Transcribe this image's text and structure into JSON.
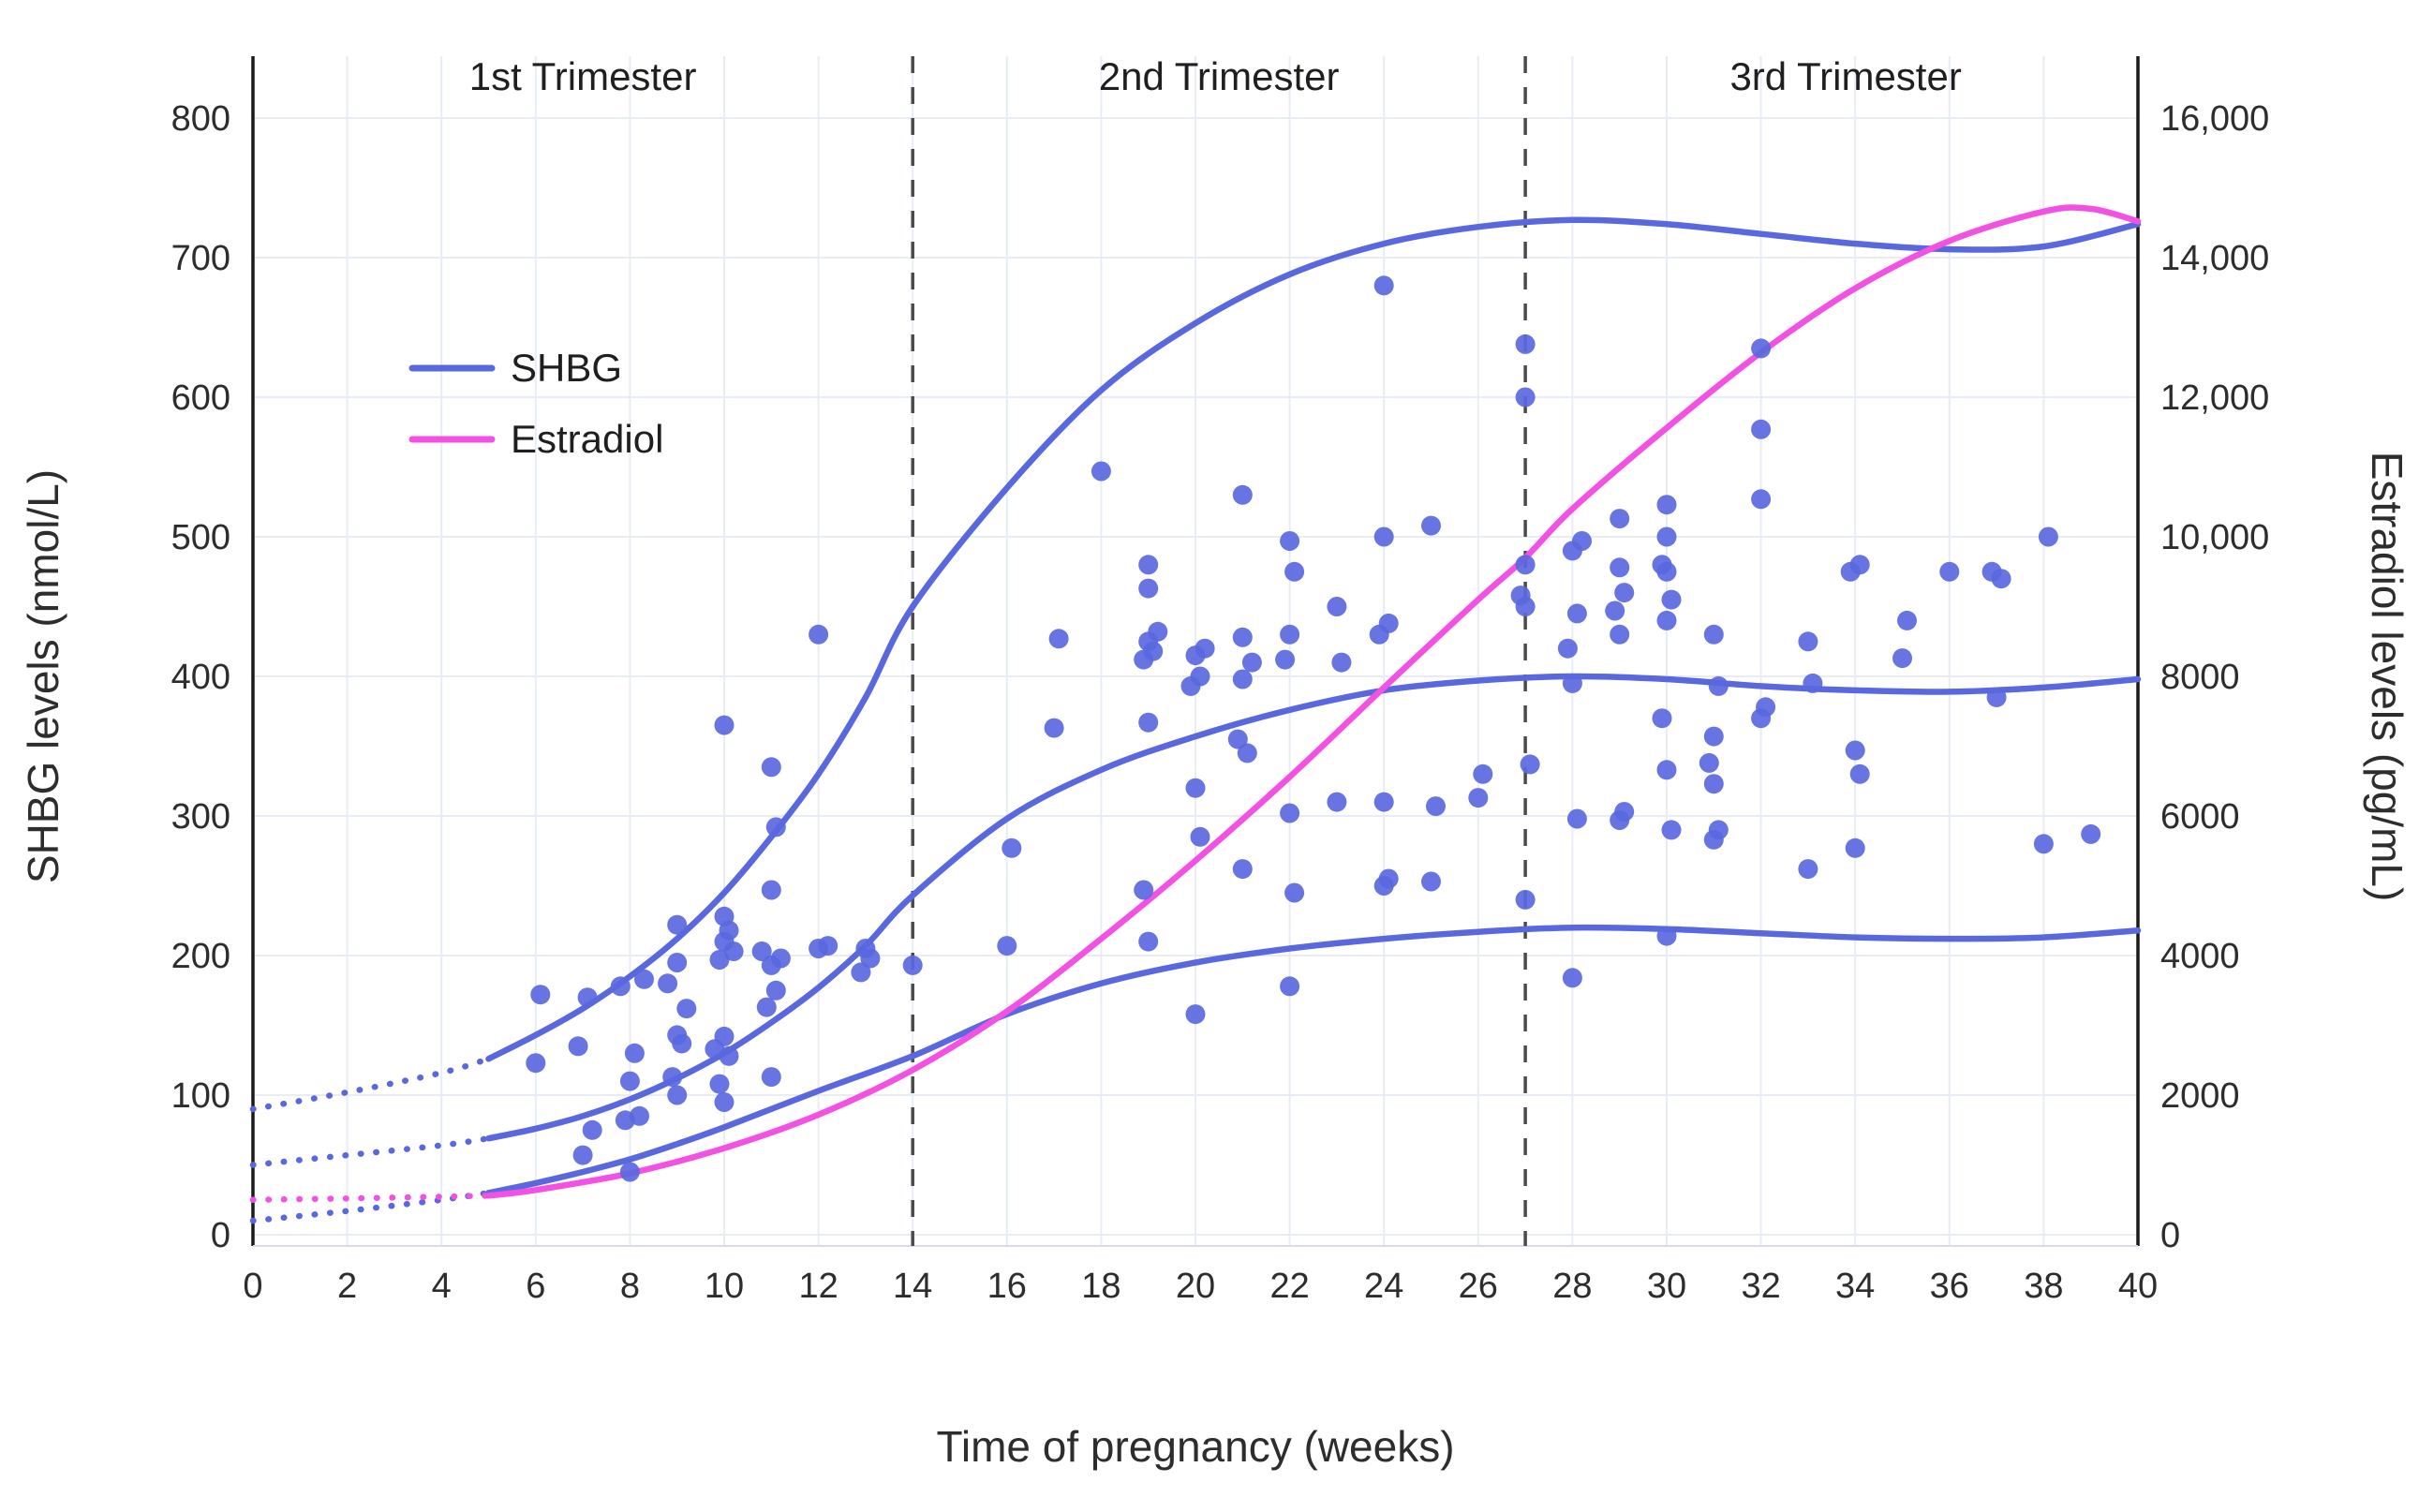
{
  "chart_data": {
    "type": "scatter",
    "title": "",
    "xlabel": "Time of pregnancy (weeks)",
    "ylabel_left": "SHBG levels (nmol/L)",
    "ylabel_right": "Estradiol levels (pg/mL)",
    "x_range": [
      0,
      40
    ],
    "y_left_range": [
      0,
      800
    ],
    "y_right_range": [
      0,
      16000
    ],
    "grid": true,
    "x_ticks": [
      0,
      2,
      4,
      6,
      8,
      10,
      12,
      14,
      16,
      18,
      20,
      22,
      24,
      26,
      28,
      30,
      32,
      34,
      36,
      38,
      40
    ],
    "y_left_ticks": [
      0,
      100,
      200,
      300,
      400,
      500,
      600,
      700,
      800
    ],
    "y_right_ticks": [
      {
        "value": 0,
        "label": "0"
      },
      {
        "value": 2000,
        "label": "2000"
      },
      {
        "value": 4000,
        "label": "4000"
      },
      {
        "value": 6000,
        "label": "6000"
      },
      {
        "value": 8000,
        "label": "8000"
      },
      {
        "value": 10000,
        "label": "10,000"
      },
      {
        "value": 12000,
        "label": "12,000"
      },
      {
        "value": 14000,
        "label": "14,000"
      },
      {
        "value": 16000,
        "label": "16,000"
      }
    ],
    "regions": {
      "dividers_weeks": [
        14,
        27
      ],
      "labels": [
        {
          "text": "1st Trimester",
          "week": 7
        },
        {
          "text": "2nd Trimester",
          "week": 20.5
        },
        {
          "text": "3rd Trimester",
          "week": 33.8
        }
      ]
    },
    "legend": {
      "position": "upper-left-inside",
      "items": [
        {
          "label": "SHBG",
          "color": "#5A68E0"
        },
        {
          "label": "Estradiol",
          "color": "#F351E3"
        }
      ]
    },
    "colors": {
      "shbg": "#5A68E0",
      "estradiol": "#F351E3",
      "divider": "#4a4a4a",
      "axis": "#1a1a1a",
      "text": "#2d2d2d",
      "grid": "#e8ecf5"
    },
    "shbg_percentile_curves": [
      {
        "name": "upper",
        "axis": "left",
        "dotted_until_week": 5,
        "points": [
          [
            0,
            90
          ],
          [
            2,
            102
          ],
          [
            4,
            116
          ],
          [
            5,
            126
          ],
          [
            6,
            143
          ],
          [
            7,
            162
          ],
          [
            8,
            185
          ],
          [
            9,
            212
          ],
          [
            10,
            245
          ],
          [
            11,
            285
          ],
          [
            12,
            330
          ],
          [
            13,
            385
          ],
          [
            14,
            450
          ],
          [
            16,
            535
          ],
          [
            18,
            605
          ],
          [
            20,
            653
          ],
          [
            22,
            688
          ],
          [
            24,
            710
          ],
          [
            26,
            722
          ],
          [
            28,
            727
          ],
          [
            30,
            724
          ],
          [
            32,
            717
          ],
          [
            34,
            710
          ],
          [
            36,
            706
          ],
          [
            38,
            708
          ],
          [
            40,
            724
          ]
        ]
      },
      {
        "name": "median",
        "axis": "left",
        "dotted_until_week": 5,
        "points": [
          [
            0,
            50
          ],
          [
            2,
            57
          ],
          [
            4,
            64
          ],
          [
            5,
            69
          ],
          [
            6,
            76
          ],
          [
            7,
            85
          ],
          [
            8,
            97
          ],
          [
            9,
            112
          ],
          [
            10,
            130
          ],
          [
            11,
            152
          ],
          [
            12,
            177
          ],
          [
            13,
            207
          ],
          [
            14,
            243
          ],
          [
            16,
            298
          ],
          [
            18,
            333
          ],
          [
            20,
            357
          ],
          [
            22,
            376
          ],
          [
            24,
            390
          ],
          [
            26,
            397
          ],
          [
            28,
            400
          ],
          [
            30,
            398
          ],
          [
            32,
            393
          ],
          [
            34,
            390
          ],
          [
            36,
            389
          ],
          [
            38,
            392
          ],
          [
            40,
            398
          ]
        ]
      },
      {
        "name": "lower",
        "axis": "left",
        "dotted_until_week": 5,
        "points": [
          [
            0,
            10
          ],
          [
            2,
            17
          ],
          [
            4,
            25
          ],
          [
            5,
            30
          ],
          [
            6,
            37
          ],
          [
            7,
            45
          ],
          [
            8,
            54
          ],
          [
            9,
            65
          ],
          [
            10,
            77
          ],
          [
            12,
            103
          ],
          [
            14,
            128
          ],
          [
            16,
            158
          ],
          [
            18,
            180
          ],
          [
            20,
            195
          ],
          [
            22,
            205
          ],
          [
            24,
            212
          ],
          [
            26,
            217
          ],
          [
            28,
            220
          ],
          [
            30,
            219
          ],
          [
            32,
            216
          ],
          [
            34,
            213
          ],
          [
            36,
            212
          ],
          [
            38,
            213
          ],
          [
            40,
            218
          ]
        ]
      }
    ],
    "estradiol_curve": {
      "axis": "right",
      "dotted_until_week": 5,
      "points_pg_ml": [
        [
          0,
          500
        ],
        [
          2,
          520
        ],
        [
          4,
          545
        ],
        [
          5,
          560
        ],
        [
          6,
          640
        ],
        [
          8,
          880
        ],
        [
          10,
          1240
        ],
        [
          12,
          1720
        ],
        [
          14,
          2360
        ],
        [
          16,
          3200
        ],
        [
          18,
          4240
        ],
        [
          20,
          5360
        ],
        [
          22,
          6560
        ],
        [
          24,
          7840
        ],
        [
          26,
          9100
        ],
        [
          27,
          9700
        ],
        [
          28,
          10400
        ],
        [
          30,
          11560
        ],
        [
          32,
          12640
        ],
        [
          34,
          13560
        ],
        [
          36,
          14240
        ],
        [
          38,
          14660
        ],
        [
          39,
          14700
        ],
        [
          40,
          14520
        ]
      ]
    },
    "shbg_scatter_points": [
      [
        6.0,
        123
      ],
      [
        6.1,
        172
      ],
      [
        7.0,
        57
      ],
      [
        7.2,
        75
      ],
      [
        6.9,
        135
      ],
      [
        7.1,
        170
      ],
      [
        8.0,
        45
      ],
      [
        7.9,
        82
      ],
      [
        8.2,
        85
      ],
      [
        8.0,
        110
      ],
      [
        8.1,
        130
      ],
      [
        7.8,
        178
      ],
      [
        8.3,
        183
      ],
      [
        9.0,
        100
      ],
      [
        8.9,
        113
      ],
      [
        9.1,
        137
      ],
      [
        9.0,
        143
      ],
      [
        9.2,
        162
      ],
      [
        8.8,
        180
      ],
      [
        9.0,
        195
      ],
      [
        9.0,
        222
      ],
      [
        10.0,
        95
      ],
      [
        9.9,
        108
      ],
      [
        10.1,
        128
      ],
      [
        9.8,
        133
      ],
      [
        10.0,
        142
      ],
      [
        9.9,
        197
      ],
      [
        10.2,
        203
      ],
      [
        10.0,
        210
      ],
      [
        10.1,
        218
      ],
      [
        10.0,
        228
      ],
      [
        10.0,
        365
      ],
      [
        11.0,
        113
      ],
      [
        10.9,
        163
      ],
      [
        11.1,
        175
      ],
      [
        11.0,
        193
      ],
      [
        11.2,
        198
      ],
      [
        10.8,
        203
      ],
      [
        11.0,
        247
      ],
      [
        11.1,
        292
      ],
      [
        11.0,
        335
      ],
      [
        12.0,
        205
      ],
      [
        12.2,
        207
      ],
      [
        12.0,
        430
      ],
      [
        12.9,
        188
      ],
      [
        13.1,
        198
      ],
      [
        13.0,
        205
      ],
      [
        14.0,
        193
      ],
      [
        16.0,
        207
      ],
      [
        16.1,
        277
      ],
      [
        17.0,
        363
      ],
      [
        17.1,
        427
      ],
      [
        18.0,
        547
      ],
      [
        19.0,
        210
      ],
      [
        18.9,
        247
      ],
      [
        19.0,
        367
      ],
      [
        18.9,
        412
      ],
      [
        19.1,
        418
      ],
      [
        19.0,
        425
      ],
      [
        19.2,
        432
      ],
      [
        19.0,
        463
      ],
      [
        19.0,
        480
      ],
      [
        20.0,
        158
      ],
      [
        20.1,
        285
      ],
      [
        20.0,
        320
      ],
      [
        19.9,
        393
      ],
      [
        20.1,
        400
      ],
      [
        20.0,
        415
      ],
      [
        20.2,
        420
      ],
      [
        21.0,
        262
      ],
      [
        21.1,
        345
      ],
      [
        20.9,
        355
      ],
      [
        21.0,
        398
      ],
      [
        21.2,
        410
      ],
      [
        21.0,
        428
      ],
      [
        21.0,
        530
      ],
      [
        22.0,
        178
      ],
      [
        22.1,
        245
      ],
      [
        22.0,
        302
      ],
      [
        21.9,
        412
      ],
      [
        22.0,
        430
      ],
      [
        22.1,
        475
      ],
      [
        22.0,
        497
      ],
      [
        23.0,
        310
      ],
      [
        23.1,
        410
      ],
      [
        23.0,
        450
      ],
      [
        24.0,
        250
      ],
      [
        24.1,
        255
      ],
      [
        24.0,
        310
      ],
      [
        23.9,
        430
      ],
      [
        24.1,
        438
      ],
      [
        24.0,
        500
      ],
      [
        24.0,
        680
      ],
      [
        25.0,
        253
      ],
      [
        25.1,
        307
      ],
      [
        25.0,
        508
      ],
      [
        26.0,
        313
      ],
      [
        26.1,
        330
      ],
      [
        27.0,
        240
      ],
      [
        27.1,
        337
      ],
      [
        27.0,
        450
      ],
      [
        26.9,
        458
      ],
      [
        27.0,
        480
      ],
      [
        27.0,
        600
      ],
      [
        27.0,
        638
      ],
      [
        28.0,
        184
      ],
      [
        28.1,
        298
      ],
      [
        28.0,
        395
      ],
      [
        27.9,
        420
      ],
      [
        28.1,
        445
      ],
      [
        28.0,
        490
      ],
      [
        28.2,
        497
      ],
      [
        29.0,
        297
      ],
      [
        29.1,
        303
      ],
      [
        29.0,
        430
      ],
      [
        28.9,
        447
      ],
      [
        29.1,
        460
      ],
      [
        29.0,
        478
      ],
      [
        29.0,
        513
      ],
      [
        30.0,
        214
      ],
      [
        30.1,
        290
      ],
      [
        30.0,
        333
      ],
      [
        29.9,
        370
      ],
      [
        30.0,
        440
      ],
      [
        30.1,
        455
      ],
      [
        30.0,
        475
      ],
      [
        29.9,
        480
      ],
      [
        30.0,
        500
      ],
      [
        30.0,
        523
      ],
      [
        31.0,
        283
      ],
      [
        31.1,
        290
      ],
      [
        31.0,
        323
      ],
      [
        30.9,
        338
      ],
      [
        31.0,
        357
      ],
      [
        31.1,
        393
      ],
      [
        31.0,
        430
      ],
      [
        32.0,
        370
      ],
      [
        32.1,
        378
      ],
      [
        32.0,
        527
      ],
      [
        32.0,
        577
      ],
      [
        32.0,
        635
      ],
      [
        33.0,
        262
      ],
      [
        33.1,
        395
      ],
      [
        33.0,
        425
      ],
      [
        34.0,
        277
      ],
      [
        34.1,
        330
      ],
      [
        34.0,
        347
      ],
      [
        33.9,
        475
      ],
      [
        34.1,
        480
      ],
      [
        35.0,
        413
      ],
      [
        35.1,
        440
      ],
      [
        36.0,
        475
      ],
      [
        37.0,
        385
      ],
      [
        37.1,
        470
      ],
      [
        36.9,
        475
      ],
      [
        38.0,
        280
      ],
      [
        38.1,
        500
      ],
      [
        39.0,
        287
      ]
    ]
  }
}
